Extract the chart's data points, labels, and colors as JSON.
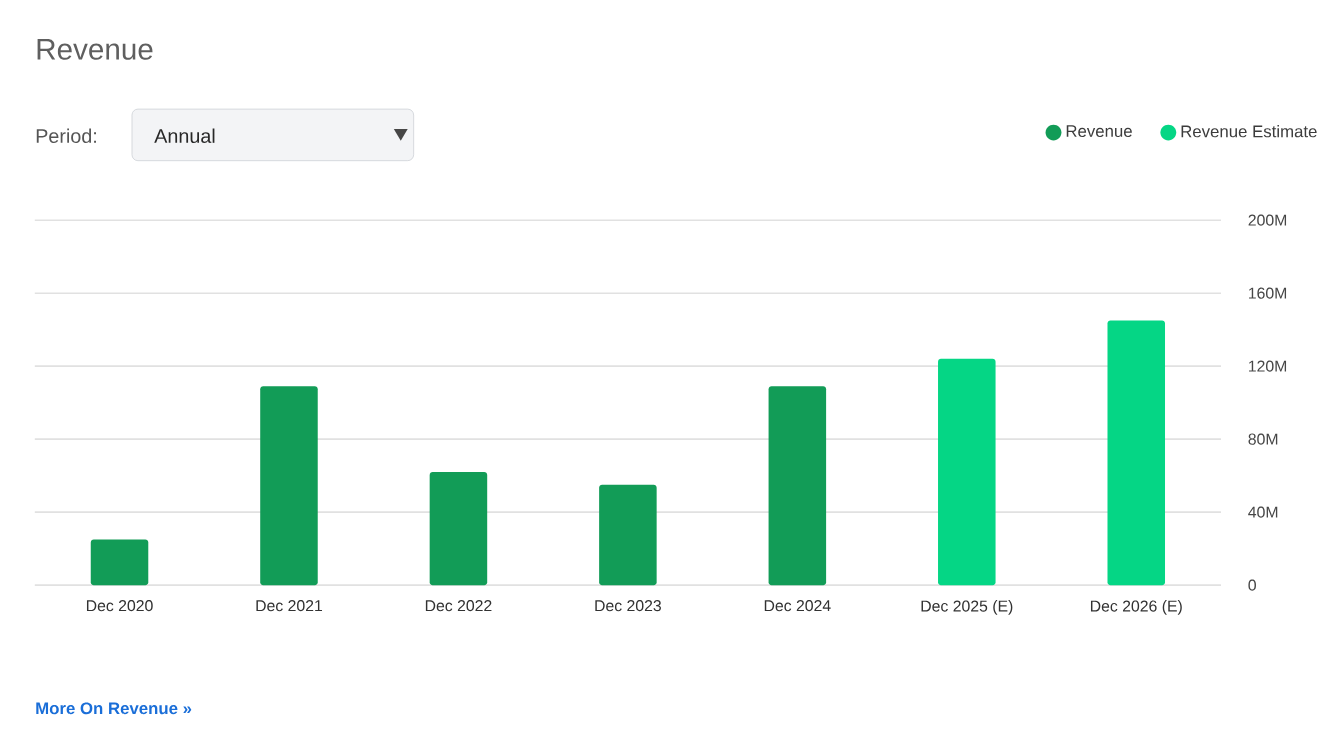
{
  "chart_data": {
    "type": "bar",
    "title": "Revenue",
    "categories": [
      "Dec 2020",
      "Dec 2021",
      "Dec 2022",
      "Dec 2023",
      "Dec 2024",
      "Dec 2025 (E)",
      "Dec 2026 (E)"
    ],
    "series": [
      {
        "name": "Revenue",
        "color": "#129c57",
        "values": [
          25,
          109,
          62,
          55,
          109,
          null,
          null
        ]
      },
      {
        "name": "Revenue Estimate",
        "color": "#05d685",
        "values": [
          null,
          null,
          null,
          null,
          null,
          124,
          145
        ]
      }
    ],
    "ylim": [
      0,
      200
    ],
    "yticks": [
      0,
      {
        "value": 40,
        "label": "40M"
      },
      {
        "value": 80,
        "label": "80M"
      },
      {
        "value": 120,
        "label": "120M"
      },
      {
        "value": 160,
        "label": "160M"
      },
      {
        "value": 200,
        "label": "200M"
      }
    ],
    "grid": "y",
    "legend": "top right",
    "annotations": [
      "Period:",
      "Annual",
      "More On Revenue »"
    ]
  }
}
